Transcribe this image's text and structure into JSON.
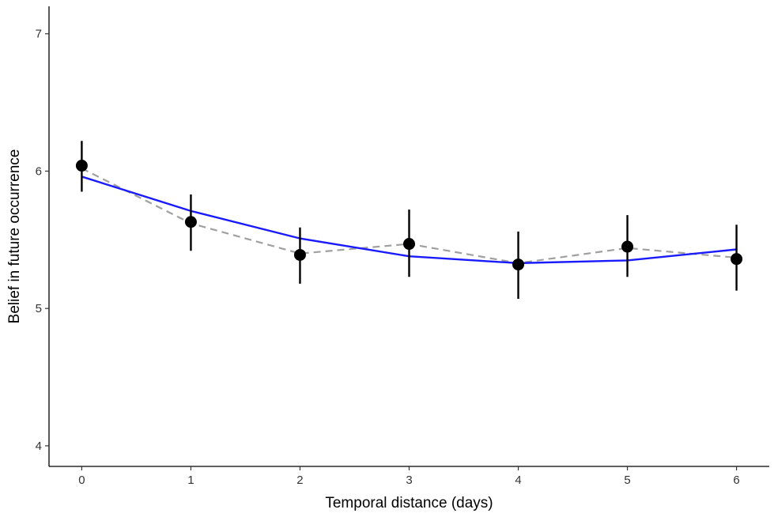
{
  "chart_data": {
    "type": "line",
    "title": "",
    "xlabel": "Temporal distance (days)",
    "ylabel": "Belief in future occurrence",
    "xlim": [
      -0.3,
      6.3
    ],
    "ylim": [
      3.85,
      7.2
    ],
    "x_ticks": [
      0,
      1,
      2,
      3,
      4,
      5,
      6
    ],
    "y_ticks": [
      4,
      5,
      6,
      7
    ],
    "grid": false,
    "legend": "none",
    "series": [
      {
        "kind": "points-with-error-bars",
        "color": "#000000",
        "points": [
          {
            "x": 0,
            "y": 6.04,
            "lower": 5.85,
            "upper": 6.22
          },
          {
            "x": 1,
            "y": 5.63,
            "lower": 5.42,
            "upper": 5.83
          },
          {
            "x": 2,
            "y": 5.39,
            "lower": 5.18,
            "upper": 5.59
          },
          {
            "x": 3,
            "y": 5.47,
            "lower": 5.23,
            "upper": 5.72
          },
          {
            "x": 4,
            "y": 5.32,
            "lower": 5.07,
            "upper": 5.56
          },
          {
            "x": 5,
            "y": 5.45,
            "lower": 5.23,
            "upper": 5.68
          },
          {
            "x": 6,
            "y": 5.36,
            "lower": 5.13,
            "upper": 5.61
          }
        ]
      },
      {
        "kind": "dashed-line",
        "color": "#a0a0a0",
        "x": [
          0,
          1,
          2,
          3,
          4,
          5,
          6
        ],
        "values": [
          6.02,
          5.62,
          5.4,
          5.47,
          5.33,
          5.44,
          5.37
        ]
      },
      {
        "kind": "solid-line",
        "color": "#1a1aff",
        "x": [
          0,
          1,
          2,
          3,
          4,
          5,
          6
        ],
        "values": [
          5.96,
          5.71,
          5.51,
          5.38,
          5.33,
          5.35,
          5.43
        ]
      }
    ]
  }
}
